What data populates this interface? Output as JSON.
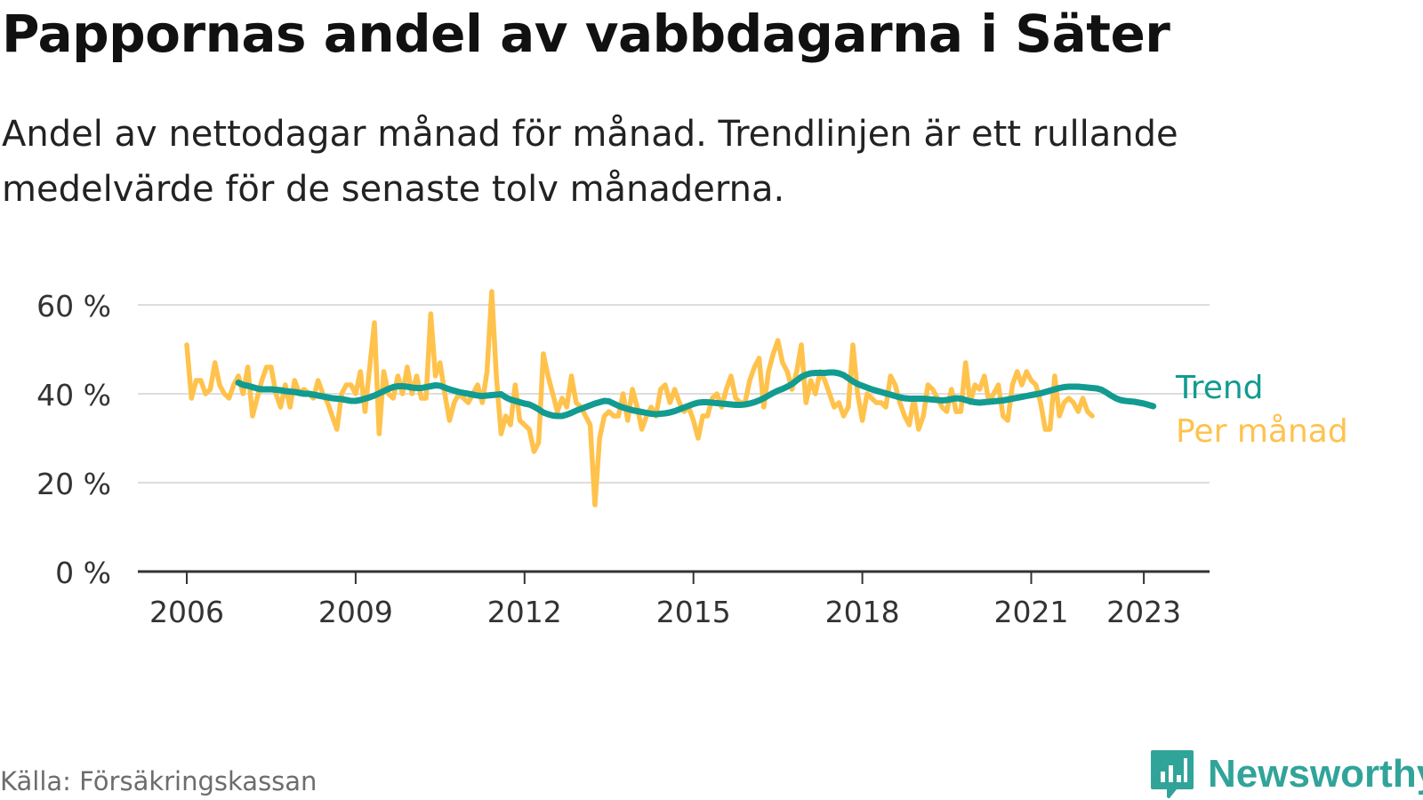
{
  "header": {
    "title": "Pappornas andel av vabbdagarna i Säter",
    "subtitle": "Andel av nettodagar månad för månad. Trendlinjen är ett rullande medelvärde för de senaste tolv månaderna."
  },
  "footer": {
    "source": "Källa: Försäkringskassan",
    "brand": "Newsworthy",
    "brand_icon": "newsworthy-logo-icon"
  },
  "colors": {
    "trend": "#129b91",
    "monthly": "#ffc24c",
    "grid": "#dddddd",
    "axis": "#333333",
    "brand": "#31a49a"
  },
  "chart_data": {
    "type": "line",
    "x_axis_type": "date",
    "ylim": [
      0,
      60
    ],
    "y_ticks": [
      0,
      20,
      40,
      60
    ],
    "y_tick_labels": [
      "0 %",
      "20 %",
      "40 %",
      "60 %"
    ],
    "x_ticks": [
      "2006-01",
      "2009-01",
      "2012-01",
      "2015-01",
      "2018-01",
      "2021-01",
      "2023-01"
    ],
    "x_tick_labels": [
      "2006",
      "2009",
      "2012",
      "2015",
      "2018",
      "2021",
      "2023"
    ],
    "grid": true,
    "legend": "direct labels at line ends (right)",
    "series": [
      {
        "name": "Per månad",
        "color": "#ffc24c",
        "start": "2006-01",
        "values": [
          51,
          39,
          43,
          43,
          40,
          41,
          47,
          42,
          40,
          39,
          42,
          44,
          40,
          46,
          35,
          39,
          43,
          46,
          46,
          40,
          37,
          42,
          37,
          43,
          40,
          41,
          40,
          39,
          43,
          40,
          38,
          35,
          32,
          40,
          42,
          42,
          40,
          45,
          36,
          46,
          56,
          31,
          45,
          40,
          39,
          44,
          40,
          46,
          40,
          44,
          39,
          39,
          58,
          44,
          47,
          40,
          34,
          38,
          40,
          39,
          38,
          40,
          42,
          38,
          45,
          63,
          44,
          31,
          35,
          33,
          42,
          34,
          33,
          32,
          27,
          29,
          49,
          44,
          40,
          36,
          39,
          37,
          44,
          38,
          37,
          35,
          33,
          15,
          30,
          35,
          36,
          35,
          35,
          40,
          34,
          41,
          37,
          32,
          35,
          37,
          35,
          41,
          42,
          38,
          41,
          38,
          36,
          37,
          34,
          30,
          35,
          35,
          39,
          40,
          37,
          41,
          44,
          39,
          38,
          38,
          43,
          46,
          48,
          37,
          45,
          49,
          52,
          47,
          45,
          41,
          45,
          51,
          38,
          43,
          40,
          45,
          43,
          40,
          37,
          38,
          35,
          37,
          51,
          40,
          34,
          40,
          39,
          38,
          38,
          37,
          44,
          42,
          38,
          35,
          33,
          39,
          32,
          35,
          42,
          41,
          39,
          37,
          36,
          41,
          36,
          36,
          47,
          38,
          42,
          41,
          44,
          38,
          40,
          42,
          35,
          34,
          42,
          45,
          42,
          45,
          43,
          42,
          38,
          32,
          32,
          44,
          35,
          38,
          39,
          38,
          36,
          39,
          36,
          35
        ]
      },
      {
        "name": "Trend",
        "color": "#129b91",
        "start": "2006-12",
        "values": [
          42.5,
          42,
          41.8,
          41.5,
          41.2,
          41,
          41,
          41,
          40.9,
          40.8,
          40.6,
          40.5,
          40.4,
          40.2,
          40,
          40,
          39.8,
          39.6,
          39.4,
          39.2,
          39,
          38.9,
          38.8,
          38.6,
          38.4,
          38.4,
          38.6,
          38.9,
          39.2,
          39.6,
          40.1,
          40.6,
          41.1,
          41.5,
          41.7,
          41.7,
          41.6,
          41.4,
          41.3,
          41.3,
          41.5,
          41.7,
          41.9,
          41.8,
          41.4,
          41,
          40.7,
          40.4,
          40.2,
          40,
          39.8,
          39.6,
          39.5,
          39.6,
          39.7,
          39.8,
          39.9,
          39.2,
          38.7,
          38.4,
          38.1,
          37.8,
          37.6,
          37.1,
          36.5,
          35.8,
          35.4,
          35.1,
          35,
          35,
          35.3,
          35.7,
          36.2,
          36.6,
          37,
          37.4,
          37.8,
          38.1,
          38.4,
          38.3,
          37.8,
          37.3,
          36.9,
          36.6,
          36.3,
          36.1,
          35.9,
          35.7,
          35.5,
          35.4,
          35.5,
          35.6,
          35.8,
          36.1,
          36.5,
          36.9,
          37.3,
          37.7,
          38,
          38.1,
          38.1,
          38,
          37.9,
          37.8,
          37.7,
          37.6,
          37.5,
          37.5,
          37.6,
          37.8,
          38.1,
          38.5,
          39,
          39.6,
          40.2,
          40.7,
          41.1,
          41.6,
          42.2,
          43,
          43.8,
          44.3,
          44.6,
          44.7,
          44.7,
          44.7,
          44.8,
          44.8,
          44.6,
          44.2,
          43.5,
          42.8,
          42.2,
          41.8,
          41.4,
          41,
          40.7,
          40.4,
          40.1,
          39.8,
          39.5,
          39.2,
          39,
          38.9,
          38.9,
          38.9,
          38.9,
          38.8,
          38.7,
          38.6,
          38.5,
          38.6,
          38.8,
          39,
          38.9,
          38.6,
          38.3,
          38.1,
          38,
          38.1,
          38.2,
          38.3,
          38.4,
          38.5,
          38.7,
          38.9,
          39.1,
          39.3,
          39.5,
          39.7,
          39.9,
          40.1,
          40.4,
          40.7,
          41,
          41.3,
          41.5,
          41.6,
          41.6,
          41.6,
          41.5,
          41.4,
          41.3,
          41.2,
          40.9,
          40.3,
          39.6,
          39,
          38.6,
          38.4,
          38.3,
          38.2,
          38,
          37.8,
          37.5,
          37.2
        ]
      }
    ],
    "end_labels": [
      {
        "series": "Trend",
        "text": "Trend",
        "color": "#129b91"
      },
      {
        "series": "Per månad",
        "text": "Per månad",
        "color": "#ffc24c"
      }
    ]
  }
}
